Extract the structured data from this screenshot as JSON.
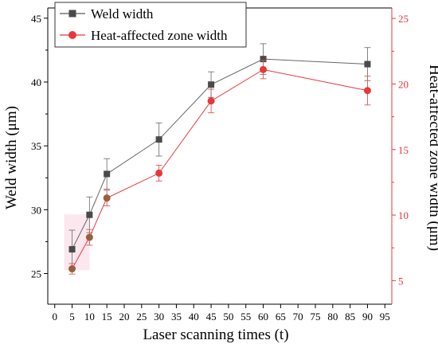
{
  "chart_data": {
    "type": "line",
    "xlabel": "Laser scanning times (t)",
    "x_ticks": [
      0,
      5,
      10,
      15,
      20,
      25,
      30,
      35,
      40,
      45,
      50,
      55,
      60,
      65,
      70,
      75,
      80,
      85,
      90,
      95
    ],
    "xlim": [
      -2,
      97
    ],
    "y_left": {
      "label": "Weld width (μm)",
      "ticks": [
        25,
        30,
        35,
        40,
        45
      ],
      "lim": [
        22.6,
        45.8
      ]
    },
    "y_right": {
      "label": "Heat-affected zone width (μm)",
      "ticks": [
        5,
        10,
        15,
        20,
        25
      ],
      "lim": [
        3.2,
        25.8
      ]
    },
    "legend": {
      "placement": "top-left",
      "entries": [
        "Weld width",
        "Heat-affected zone width"
      ]
    },
    "grid": false,
    "series": [
      {
        "name": "Weld width",
        "axis": "left",
        "color": "#444444",
        "marker": "square",
        "x": [
          5,
          10,
          15,
          30,
          45,
          60,
          90
        ],
        "y": [
          26.9,
          29.6,
          32.8,
          35.5,
          39.8,
          41.8,
          41.4
        ],
        "err": [
          1.5,
          1.4,
          1.2,
          1.3,
          1.0,
          1.2,
          1.3
        ]
      },
      {
        "name": "Heat-affected zone width",
        "axis": "right",
        "color": "#e8373c",
        "marker": "circle",
        "x": [
          5,
          10,
          15,
          30,
          45,
          60,
          90
        ],
        "y": [
          5.9,
          8.3,
          11.3,
          13.2,
          18.7,
          21.1,
          19.5
        ],
        "err": [
          0.4,
          0.6,
          0.6,
          0.6,
          0.9,
          0.7,
          1.1
        ]
      }
    ]
  }
}
